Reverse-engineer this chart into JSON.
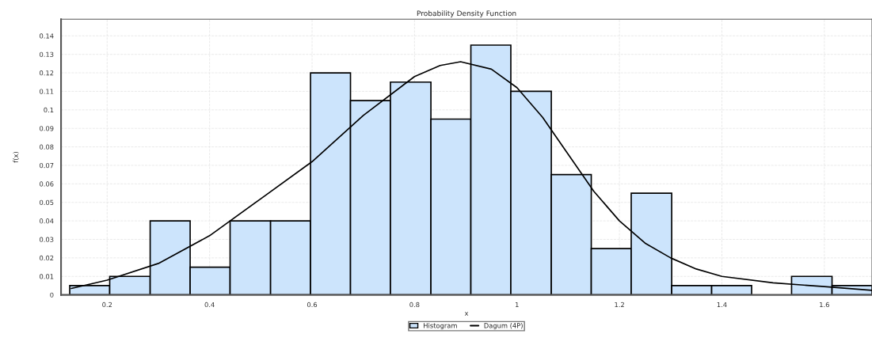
{
  "chart_data": {
    "type": "histogram",
    "title": "Probability Density Function",
    "xlabel": "x",
    "ylabel": "f(x)",
    "bins": [
      0.127,
      0.205,
      0.284,
      0.362,
      0.44,
      0.519,
      0.597,
      0.675,
      0.753,
      0.832,
      0.91,
      0.988,
      1.067,
      1.145,
      1.223,
      1.302,
      1.38,
      1.458,
      1.536,
      1.615,
      1.693
    ],
    "series": [
      {
        "name": "Histogram",
        "type": "histogram",
        "color": "#cce4fc",
        "values": [
          0.005,
          0.01,
          0.04,
          0.015,
          0.04,
          0.04,
          0.12,
          0.105,
          0.115,
          0.095,
          0.135,
          0.11,
          0.065,
          0.025,
          0.055,
          0.005,
          0.005,
          0,
          0.01,
          0.005
        ]
      },
      {
        "name": "Dagum (4P)",
        "type": "line",
        "color": "#000000",
        "x": [
          0.13,
          0.2,
          0.3,
          0.4,
          0.5,
          0.6,
          0.7,
          0.8,
          0.85,
          0.89,
          0.95,
          1.0,
          1.05,
          1.1,
          1.15,
          1.2,
          1.25,
          1.3,
          1.35,
          1.4,
          1.5,
          1.6,
          1.693
        ],
        "values": [
          0.0035,
          0.008,
          0.017,
          0.032,
          0.052,
          0.072,
          0.097,
          0.118,
          0.124,
          0.126,
          0.122,
          0.112,
          0.096,
          0.076,
          0.056,
          0.04,
          0.028,
          0.02,
          0.014,
          0.01,
          0.0065,
          0.0045,
          0.0025
        ]
      }
    ],
    "xlim": [
      0.11,
      1.693
    ],
    "ylim": [
      0,
      0.149
    ],
    "xticks": [
      0.2,
      0.4,
      0.6,
      0.8,
      {
        "value": 1,
        "label": "1"
      },
      1.2,
      1.4,
      1.6
    ],
    "yticks": [
      {
        "value": 0,
        "label": "0"
      },
      0.01,
      0.02,
      0.03,
      0.04,
      0.05,
      0.06,
      0.07,
      0.08,
      0.09,
      0.1,
      0.11,
      0.12,
      0.13,
      0.14
    ],
    "grid": true,
    "legend": "bottom",
    "marker": "none",
    "line_style": "solid"
  }
}
